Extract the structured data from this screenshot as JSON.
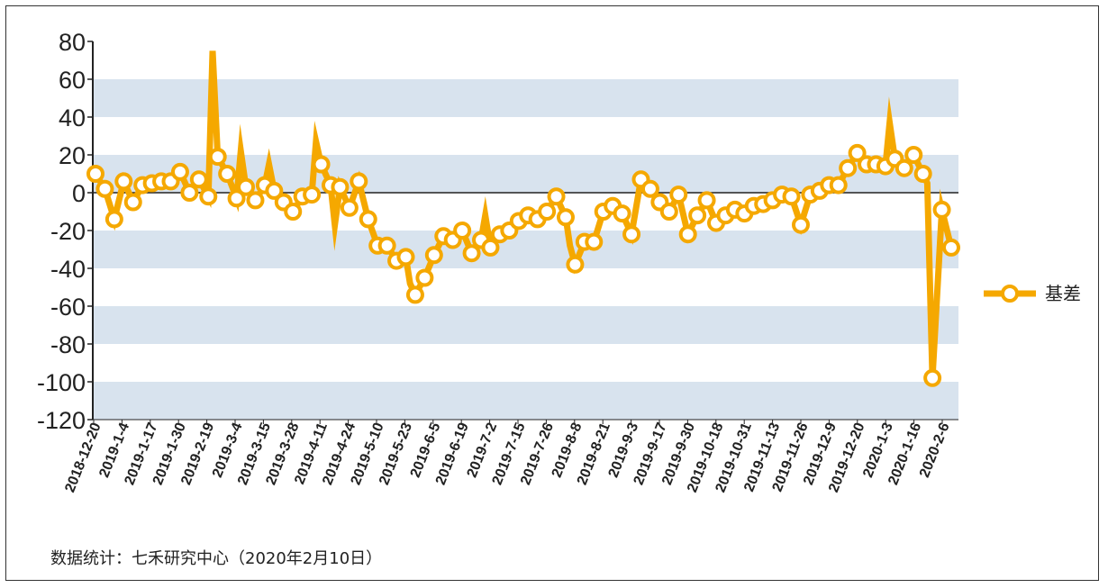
{
  "chart_data": {
    "type": "line",
    "ylim": [
      -120,
      80
    ],
    "y_ticks": [
      "80",
      "60",
      "40",
      "20",
      "0",
      "-20",
      "-40",
      "-60",
      "-80",
      "-100",
      "-120"
    ],
    "x_ticks": [
      "2018-12-20",
      "2019-1-4",
      "2019-1-17",
      "2019-1-30",
      "2019-2-19",
      "2019-3-4",
      "2019-3-15",
      "2019-3-28",
      "2019-4-11",
      "2019-4-24",
      "2019-5-10",
      "2019-5-23",
      "2019-6-5",
      "2019-6-19",
      "2019-7-2",
      "2019-7-15",
      "2019-7-26",
      "2019-8-8",
      "2019-8-21",
      "2019-9-3",
      "2019-9-17",
      "2019-9-30",
      "2019-10-18",
      "2019-10-31",
      "2019-11-13",
      "2019-11-26",
      "2019-12-9",
      "2019-12-20",
      "2020-1-3",
      "2020-1-16",
      "2020-2-6"
    ],
    "grid": "alternating horizontal bands",
    "legend_position": "right",
    "series": [
      {
        "name": "基差",
        "color": "#F5A800",
        "marker": "circle",
        "values": [
          10,
          2,
          -14,
          6,
          -5,
          4,
          5,
          6,
          6,
          11,
          0,
          7,
          -2,
          19,
          10,
          -3,
          3,
          -4,
          4,
          1,
          -5,
          -10,
          -2,
          -1,
          15,
          4,
          3,
          -8,
          6,
          -14,
          -28,
          -28,
          -36,
          -34,
          -54,
          -45,
          -33,
          -23,
          -25,
          -20,
          -32,
          -25,
          -29,
          -22,
          -20,
          -15,
          -12,
          -14,
          -10,
          -2,
          -13,
          -38,
          -26,
          -26,
          -10,
          -7,
          -11,
          -22,
          7,
          2,
          -5,
          -10,
          -1,
          -22,
          -12,
          -4,
          -16,
          -12,
          -9,
          -11,
          -7,
          -6,
          -4,
          -1,
          -2,
          -17,
          -1,
          1,
          4,
          4,
          13,
          21,
          15,
          15,
          14,
          18,
          13,
          20,
          10,
          -98,
          -9,
          -29
        ],
        "spikes": [
          {
            "after_index": 12,
            "peak": 75
          },
          {
            "after_index": 15,
            "peak": 22
          },
          {
            "after_index": 18,
            "peak": 15
          },
          {
            "after_index": 23,
            "peak": 27
          },
          {
            "after_index": 25,
            "peak": -17
          },
          {
            "after_index": 33,
            "peak": -48
          },
          {
            "after_index": 41,
            "peak": -12
          },
          {
            "after_index": 50,
            "peak": -28
          },
          {
            "after_index": 84,
            "peak": 37
          },
          {
            "after_index": 88,
            "peak": 5
          }
        ]
      }
    ]
  },
  "legend": {
    "label": "基差"
  },
  "footnote": "数据统计：七禾研究中心（2020年2月10日）"
}
